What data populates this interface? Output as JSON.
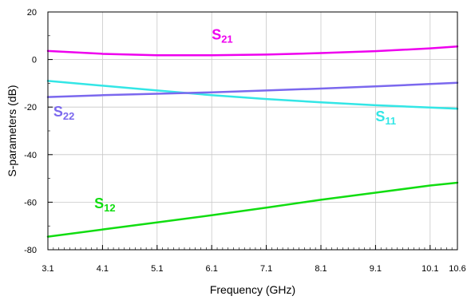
{
  "chart_data": {
    "type": "line",
    "xlabel": "Frequency (GHz)",
    "ylabel": "S-parameters (dB)",
    "xlim": [
      3.1,
      10.6
    ],
    "ylim": [
      -80,
      20
    ],
    "xticks": [
      "3.1",
      "4.1",
      "5.1",
      "6.1",
      "7.1",
      "8.1",
      "9.1",
      "10.1",
      "10.6"
    ],
    "yticks": [
      "20",
      "0",
      "-20",
      "-40",
      "-60",
      "-80"
    ],
    "grid": true,
    "series": [
      {
        "name": "S21",
        "label_main": "S",
        "label_sub": "21",
        "color": "#ee00ee",
        "x": [
          3.1,
          4.1,
          5.1,
          6.1,
          7.1,
          8.1,
          9.1,
          10.1,
          10.6
        ],
        "values": [
          3.6,
          2.4,
          1.8,
          1.8,
          2.1,
          2.7,
          3.5,
          4.7,
          5.5
        ]
      },
      {
        "name": "S11",
        "label_main": "S",
        "label_sub": "11",
        "color": "#33e6e6",
        "x": [
          3.1,
          4.1,
          5.1,
          6.1,
          7.1,
          8.1,
          9.1,
          10.1,
          10.6
        ],
        "values": [
          -9.0,
          -11.0,
          -13.0,
          -15.0,
          -16.6,
          -18.0,
          -19.2,
          -20.2,
          -20.7
        ]
      },
      {
        "name": "S22",
        "label_main": "S",
        "label_sub": "22",
        "color": "#7b68ee",
        "x": [
          3.1,
          4.1,
          5.1,
          6.1,
          7.1,
          8.1,
          9.1,
          10.1,
          10.6
        ],
        "values": [
          -15.8,
          -15.0,
          -14.4,
          -13.8,
          -13.0,
          -12.2,
          -11.3,
          -10.3,
          -9.8
        ]
      },
      {
        "name": "S12",
        "label_main": "S",
        "label_sub": "12",
        "color": "#11dd11",
        "x": [
          3.1,
          4.1,
          5.1,
          6.1,
          7.1,
          8.1,
          9.1,
          10.1,
          10.6
        ],
        "values": [
          -74.5,
          -71.5,
          -68.5,
          -65.5,
          -62.3,
          -59.0,
          -56.0,
          -53.0,
          -51.8
        ]
      }
    ]
  }
}
